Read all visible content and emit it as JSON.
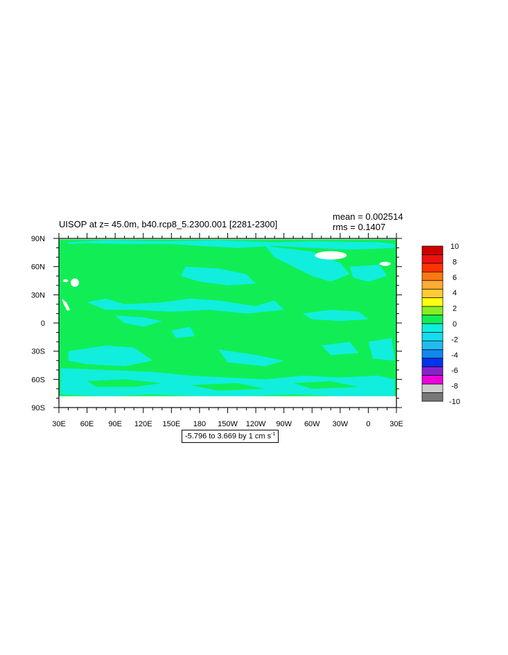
{
  "chart_data": {
    "type": "heatmap",
    "title": "UISOP at z=  45.0m, b40.rcp8_5.2300.001 [2281-2300]",
    "stats": {
      "mean": "mean = 0.002514",
      "rms": "rms = 0.1407"
    },
    "caption": {
      "text": "-5.796 to 3.669 by 1 cm s",
      "superscript": "-1"
    },
    "x_ticks": [
      "30E",
      "60E",
      "90E",
      "120E",
      "150E",
      "180",
      "150W",
      "120W",
      "90W",
      "60W",
      "30W",
      "0",
      "30E"
    ],
    "y_ticks": [
      "90N",
      "60N",
      "30N",
      "0",
      "30S",
      "60S",
      "90S"
    ],
    "x_range": [
      30,
      390
    ],
    "y_range": [
      -90,
      90
    ],
    "colorbar": {
      "labels": [
        "10",
        "8",
        "6",
        "4",
        "2",
        "0",
        "-2",
        "-4",
        "-6",
        "-8",
        "-10"
      ],
      "colors": [
        "#cc0000",
        "#ee1111",
        "#ff3300",
        "#ff7711",
        "#ffaa33",
        "#ffcc33",
        "#ffff11",
        "#88ee22",
        "#11ee55",
        "#11eedd",
        "#11ddee",
        "#22bbee",
        "#1188ee",
        "#0033ee",
        "#8822cc",
        "#ee00dd",
        "#cccccc",
        "#777777"
      ]
    },
    "field_colors": {
      "positive_small": "#11ee55",
      "negative_small": "#11eedd",
      "missing": "#ffffff"
    }
  }
}
